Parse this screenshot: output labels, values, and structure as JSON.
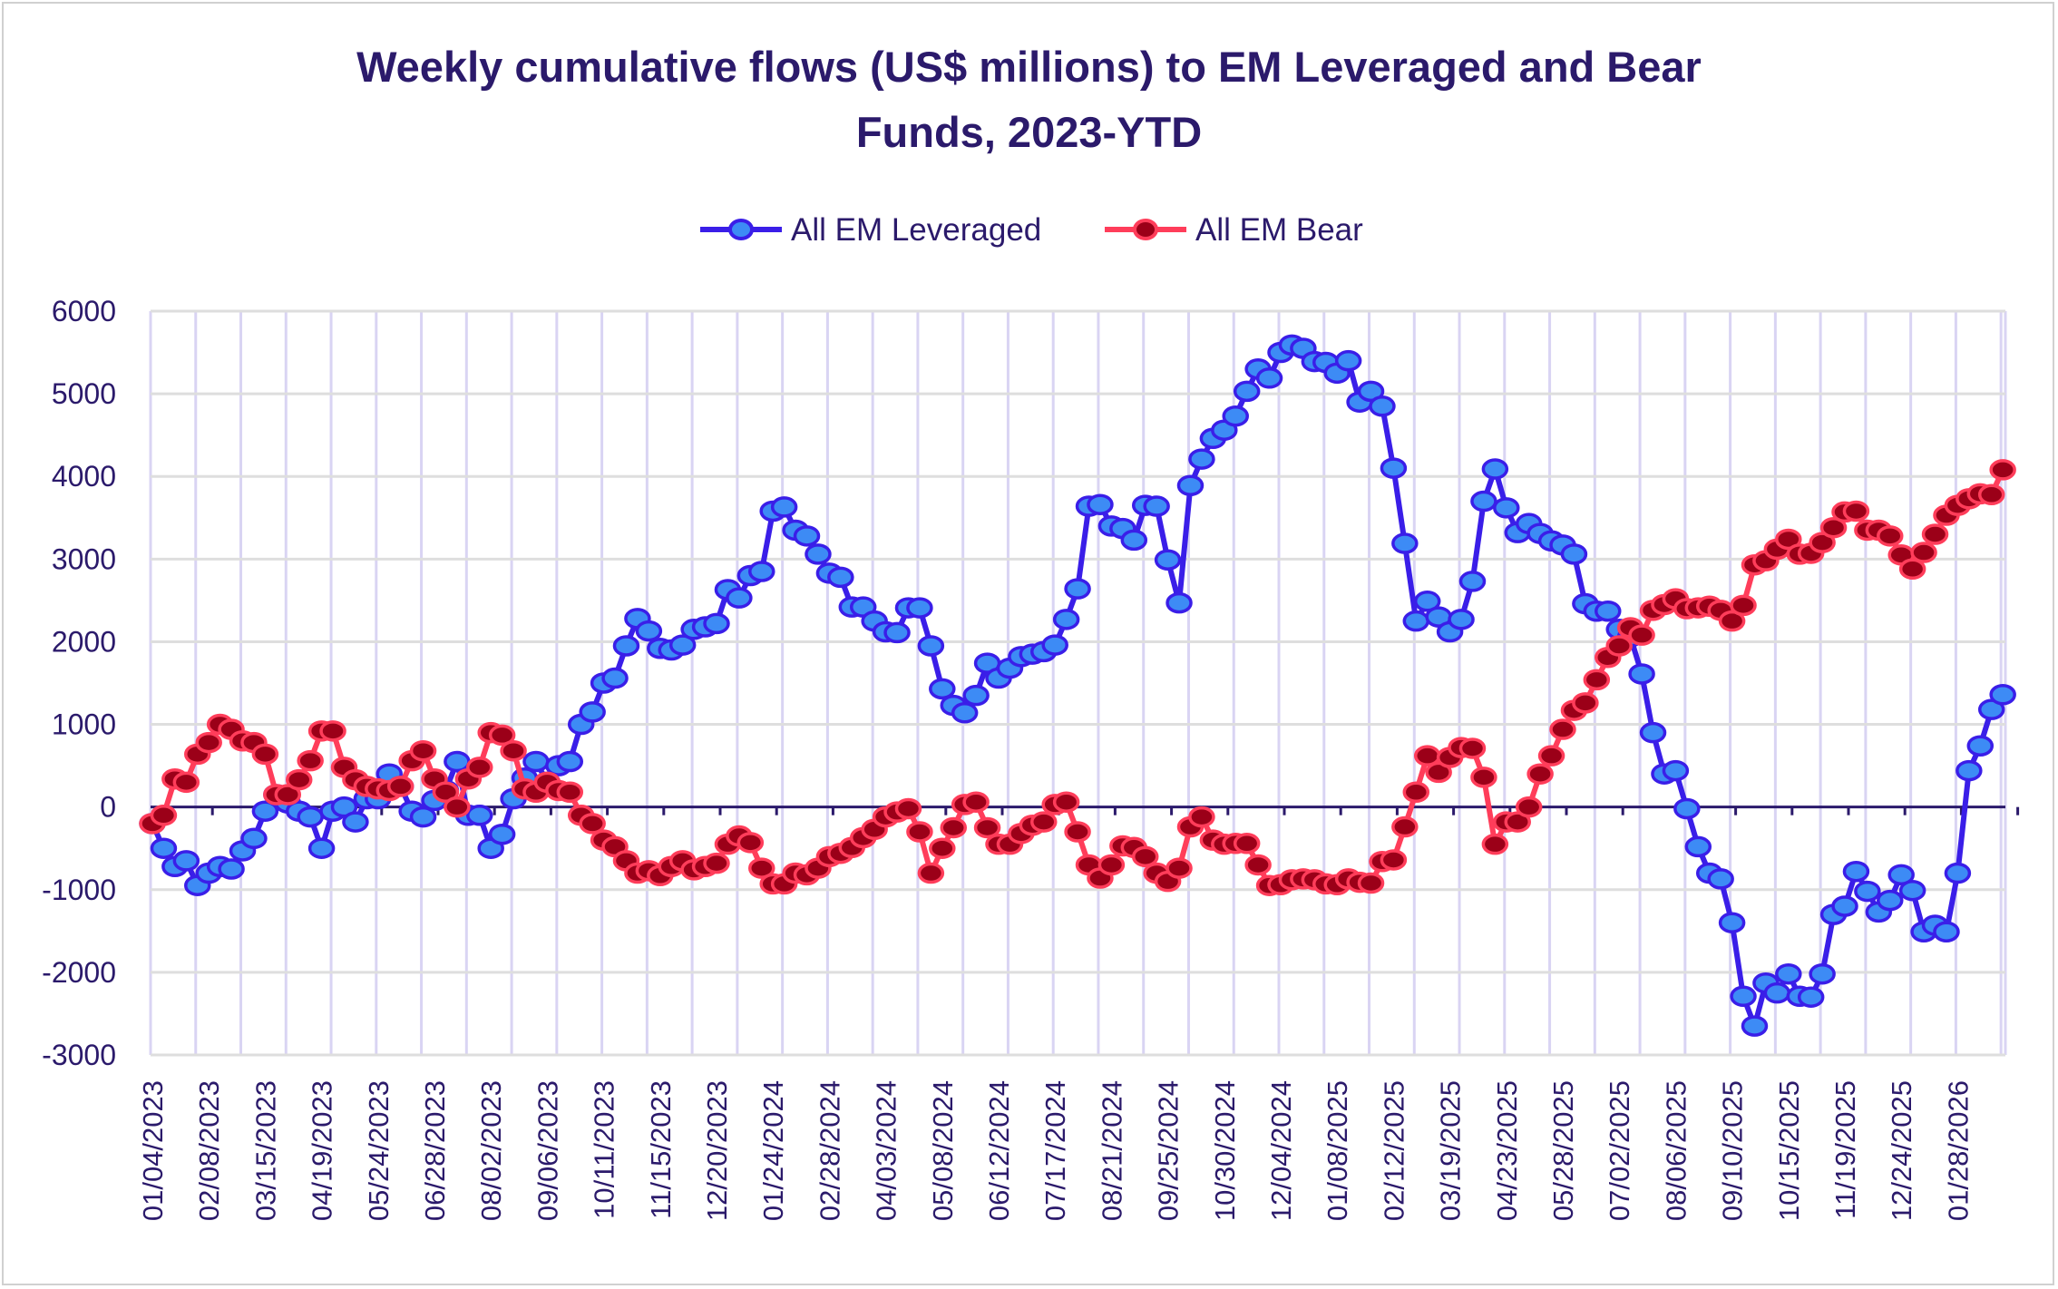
{
  "chart_data": {
    "type": "line",
    "title_line1": "Weekly cumulative flows (US$ millions) to EM Leveraged and Bear",
    "title_line2": "Funds, 2023-YTD",
    "xlabel": "",
    "ylabel": "",
    "ylim": [
      -3000,
      6000
    ],
    "yticks": [
      6000,
      5000,
      4000,
      3000,
      2000,
      1000,
      0,
      -1000,
      -2000,
      -3000
    ],
    "grid": true,
    "legend_position": "top",
    "x_tick_labels": [
      "01/04/2023",
      "02/08/2023",
      "03/15/2023",
      "04/19/2023",
      "05/24/2023",
      "06/28/2023",
      "08/02/2023",
      "09/06/2023",
      "10/11/2023",
      "11/15/2023",
      "12/20/2023",
      "01/24/2024",
      "02/28/2024",
      "04/03/2024",
      "05/08/2024",
      "06/12/2024",
      "07/17/2024",
      "08/21/2024",
      "09/25/2024",
      "10/30/2024",
      "12/04/2024",
      "01/08/2025",
      "02/12/2025",
      "03/19/2025",
      "04/23/2025",
      "05/28/2025",
      "07/02/2025",
      "08/06/2025",
      "09/10/2025",
      "10/15/2025",
      "11/19/2025",
      "12/24/2025",
      "01/28/2026"
    ],
    "x_tick_every": 5,
    "series": [
      {
        "name": "All EM Leveraged",
        "line_color": "#3a1ee8",
        "marker_fill": "#3d8bf5",
        "values": [
          -200,
          -500,
          -720,
          -650,
          -950,
          -800,
          -720,
          -750,
          -530,
          -380,
          -50,
          150,
          50,
          -50,
          -120,
          -500,
          -50,
          0,
          -180,
          100,
          100,
          400,
          250,
          -50,
          -120,
          80,
          200,
          550,
          -100,
          -100,
          -500,
          -330,
          100,
          350,
          550,
          300,
          500,
          550,
          1000,
          1150,
          1500,
          1560,
          1950,
          2280,
          2130,
          1920,
          1900,
          1960,
          2150,
          2180,
          2220,
          2630,
          2530,
          2800,
          2850,
          3580,
          3630,
          3350,
          3280,
          3060,
          2830,
          2780,
          2420,
          2420,
          2250,
          2120,
          2110,
          2410,
          2410,
          1950,
          1430,
          1230,
          1140,
          1350,
          1740,
          1560,
          1680,
          1820,
          1850,
          1880,
          1960,
          2270,
          2640,
          3640,
          3660,
          3400,
          3370,
          3230,
          3650,
          3640,
          2990,
          2470,
          3890,
          4210,
          4460,
          4560,
          4730,
          5030,
          5300,
          5190,
          5500,
          5590,
          5550,
          5390,
          5380,
          5250,
          5400,
          4900,
          5030,
          4850,
          4100,
          3190,
          2250,
          2490,
          2300,
          2120,
          2270,
          2730,
          3700,
          4090,
          3620,
          3320,
          3430,
          3310,
          3220,
          3170,
          3060,
          2460,
          2370,
          2370,
          2150,
          2060,
          1610,
          900,
          400,
          440,
          -20,
          -480,
          -800,
          -870,
          -1400,
          -2290,
          -2650,
          -2130,
          -2250,
          -2020,
          -2290,
          -2300,
          -2020,
          -1300,
          -1200,
          -780,
          -1020,
          -1270,
          -1130,
          -820,
          -1010,
          -1510,
          -1430,
          -1510,
          -800,
          440,
          740,
          1180,
          1360
        ]
      },
      {
        "name": "All EM Bear",
        "line_color": "#ff3d5a",
        "marker_fill": "#9b0018",
        "values": [
          -200,
          -100,
          340,
          300,
          640,
          780,
          1000,
          940,
          800,
          780,
          640,
          150,
          150,
          330,
          560,
          920,
          920,
          480,
          330,
          250,
          220,
          200,
          250,
          560,
          680,
          340,
          180,
          0,
          340,
          480,
          900,
          870,
          680,
          220,
          180,
          300,
          200,
          180,
          -100,
          -200,
          -400,
          -480,
          -650,
          -800,
          -770,
          -830,
          -720,
          -650,
          -760,
          -720,
          -680,
          -450,
          -350,
          -430,
          -740,
          -930,
          -930,
          -800,
          -820,
          -740,
          -600,
          -560,
          -490,
          -370,
          -270,
          -120,
          -60,
          -20,
          -300,
          -800,
          -500,
          -250,
          30,
          60,
          -250,
          -450,
          -450,
          -320,
          -220,
          -180,
          30,
          60,
          -300,
          -700,
          -860,
          -700,
          -470,
          -490,
          -600,
          -800,
          -900,
          -740,
          -240,
          -120,
          -400,
          -450,
          -440,
          -440,
          -700,
          -950,
          -940,
          -880,
          -870,
          -880,
          -930,
          -940,
          -870,
          -910,
          -920,
          -660,
          -640,
          -240,
          180,
          620,
          420,
          600,
          720,
          710,
          360,
          -450,
          -180,
          -180,
          0,
          400,
          620,
          940,
          1170,
          1260,
          1540,
          1810,
          1950,
          2170,
          2080,
          2380,
          2450,
          2520,
          2400,
          2410,
          2430,
          2380,
          2250,
          2440,
          2930,
          2980,
          3120,
          3240,
          3060,
          3070,
          3200,
          3380,
          3570,
          3580,
          3350,
          3350,
          3280,
          3050,
          2880,
          3080,
          3300,
          3530,
          3650,
          3730,
          3790,
          3780,
          4080
        ]
      }
    ]
  }
}
